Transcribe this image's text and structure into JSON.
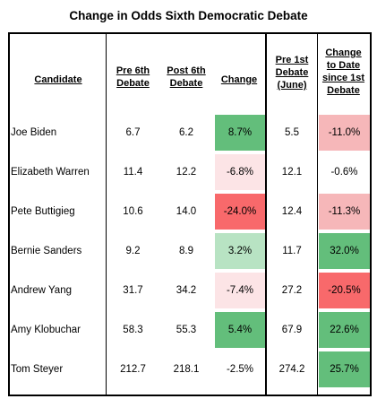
{
  "title": "Change in Odds Sixth Democratic Debate",
  "headers": {
    "candidate": "Candidate",
    "pre6": [
      "Pre 6th",
      "Debate"
    ],
    "post6": [
      "Post 6th",
      "Debate"
    ],
    "change": "Change",
    "pre1": [
      "Pre 1st",
      "Debate",
      "(June)"
    ],
    "since1": [
      "Change",
      "to Date",
      "since 1st",
      "Debate"
    ]
  },
  "colors": {
    "green_strong": "#63be7b",
    "green_light": "#b8e3c3",
    "red_strong": "#f8696b",
    "red_light": "#f6b7b9",
    "red_faint": "#fce4e6"
  },
  "rows": [
    {
      "name": "Joe Biden",
      "pre6": "6.7",
      "post6": "6.2",
      "change": "8.7%",
      "pre1": "5.5",
      "since1": "-11.0%",
      "change_color": "green_strong",
      "since1_color": "red_light"
    },
    {
      "name": "Elizabeth Warren",
      "pre6": "11.4",
      "post6": "12.2",
      "change": "-6.8%",
      "pre1": "12.1",
      "since1": "-0.6%",
      "change_color": "red_faint",
      "since1_color": ""
    },
    {
      "name": "Pete Buttigieg",
      "pre6": "10.6",
      "post6": "14.0",
      "change": "-24.0%",
      "pre1": "12.4",
      "since1": "-11.3%",
      "change_color": "red_strong",
      "since1_color": "red_light"
    },
    {
      "name": "Bernie Sanders",
      "pre6": "9.2",
      "post6": "8.9",
      "change": "3.2%",
      "pre1": "11.7",
      "since1": "32.0%",
      "change_color": "green_light",
      "since1_color": "green_strong"
    },
    {
      "name": "Andrew Yang",
      "pre6": "31.7",
      "post6": "34.2",
      "change": "-7.4%",
      "pre1": "27.2",
      "since1": "-20.5%",
      "change_color": "red_faint",
      "since1_color": "red_strong"
    },
    {
      "name": "Amy Klobuchar",
      "pre6": "58.3",
      "post6": "55.3",
      "change": "5.4%",
      "pre1": "67.9",
      "since1": "22.6%",
      "change_color": "green_strong",
      "since1_color": "green_strong"
    },
    {
      "name": "Tom Steyer",
      "pre6": "212.7",
      "post6": "218.1",
      "change": "-2.5%",
      "pre1": "274.2",
      "since1": "25.7%",
      "change_color": "",
      "since1_color": "green_strong"
    }
  ]
}
